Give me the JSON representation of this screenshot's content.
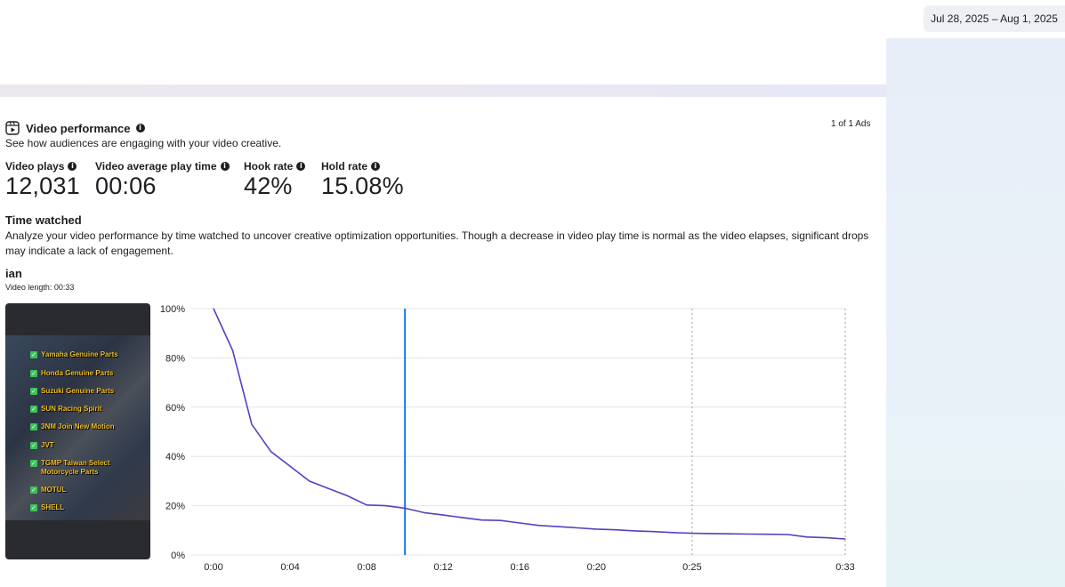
{
  "header": {
    "date_range": "Jul 28, 2025 – Aug 1, 2025"
  },
  "video_performance": {
    "title": "Video performance",
    "subtitle": "See how audiences are engaging with your video creative.",
    "ads_count": "1 of 1 Ads",
    "metrics": [
      {
        "label": "Video plays",
        "value": "12,031"
      },
      {
        "label": "Video average play time",
        "value": "00:06"
      },
      {
        "label": "Hook rate",
        "value": "42%"
      },
      {
        "label": "Hold rate",
        "value": "15.08%"
      }
    ],
    "time_watched": {
      "title": "Time watched",
      "description": "Analyze your video performance by time watched to uncover creative optimization opportunities. Though a decrease in video play time is normal as the video elapses, significant drops may indicate a lack of engagement."
    },
    "video": {
      "name": "ian",
      "length_label": "Video length: 00:33",
      "thumbnail_items": [
        "Yamaha Genuine Parts",
        "Honda Genuine Parts",
        "Suzuki Genuine Parts",
        "SUN Racing Spirit",
        "3NM Join New Motion",
        "JVT",
        "TGMP Taiwan Select Motorcycle Parts",
        "MOTUL",
        "SHELL"
      ]
    }
  },
  "colors": {
    "line": "#5b3cc4",
    "marker": "#1877f2",
    "grid": "#e4e6eb"
  },
  "chart_data": {
    "type": "line",
    "x_unit": "seconds",
    "y_unit": "percent",
    "ylim": [
      0,
      100
    ],
    "xlim": [
      0,
      33
    ],
    "y_ticks": [
      "0%",
      "20%",
      "40%",
      "60%",
      "80%",
      "100%"
    ],
    "x_ticks": [
      {
        "value": 0,
        "label": "0:00"
      },
      {
        "value": 4,
        "label": "0:04"
      },
      {
        "value": 8,
        "label": "0:08"
      },
      {
        "value": 12,
        "label": "0:12"
      },
      {
        "value": 16,
        "label": "0:16"
      },
      {
        "value": 20,
        "label": "0:20"
      },
      {
        "value": 25,
        "label": "0:25"
      },
      {
        "value": 33,
        "label": "0:33"
      }
    ],
    "dotted_markers": [
      25,
      33
    ],
    "current_position": 10,
    "series": [
      {
        "x": [
          0,
          1,
          2,
          3,
          4,
          5,
          6,
          7,
          8,
          9,
          10,
          11,
          12,
          13,
          14,
          15,
          16,
          17,
          18,
          19,
          20,
          21,
          22,
          23,
          24,
          25,
          26,
          27,
          28,
          29,
          30,
          31,
          32,
          33
        ],
        "values": [
          100,
          83,
          53,
          42,
          36,
          30,
          27,
          24,
          20.3,
          20,
          19,
          17.2,
          16.2,
          15.2,
          14.2,
          14,
          13,
          12,
          11.5,
          11,
          10.5,
          10.2,
          9.8,
          9.5,
          9.1,
          8.8,
          8.7,
          8.6,
          8.5,
          8.4,
          8.3,
          7.3,
          7,
          6.5
        ]
      }
    ]
  }
}
